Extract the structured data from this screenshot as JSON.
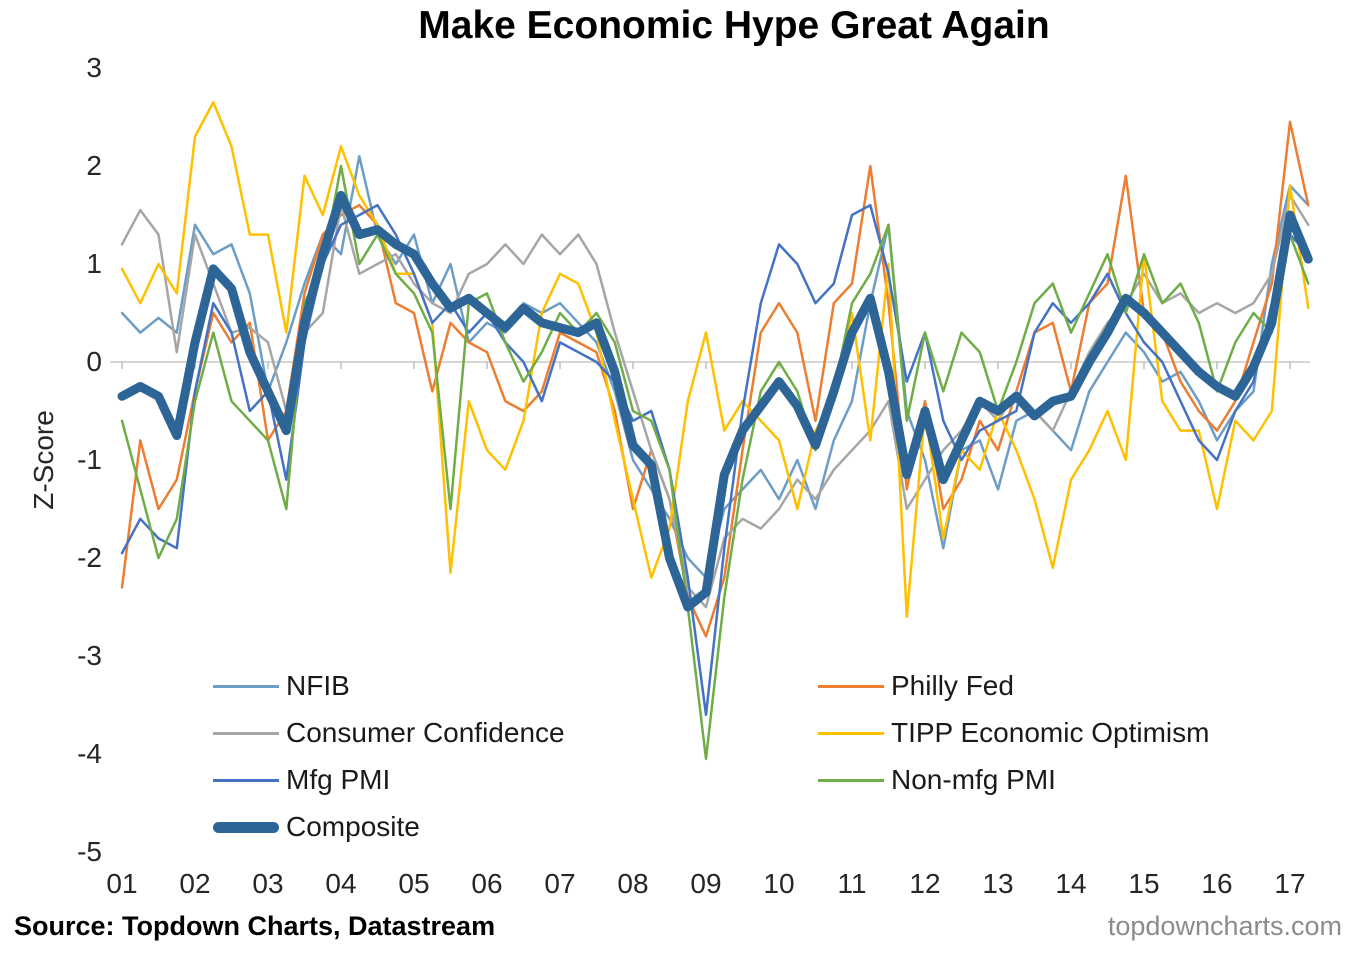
{
  "title": "Make Economic Hype Great Again",
  "y_axis": {
    "label": "Z-Score",
    "ticks": [
      3,
      2,
      1,
      0,
      -1,
      -2,
      -3,
      -4,
      -5
    ]
  },
  "x_axis": {
    "ticks": [
      "01",
      "02",
      "03",
      "04",
      "05",
      "06",
      "07",
      "08",
      "09",
      "10",
      "11",
      "12",
      "13",
      "14",
      "15",
      "16",
      "17"
    ]
  },
  "footer": {
    "source": "Source: Topdown Charts, Datastream",
    "watermark": "topdowncharts.com"
  },
  "colors": {
    "zero_line": "#D6D6D6",
    "axis_tick": "#BFBFBF",
    "title_text": "#000000",
    "watermark_text": "#8C8C8C"
  },
  "chart_data": {
    "type": "line",
    "title": "Make Economic Hype Great Again",
    "xlabel": "",
    "ylabel": "Z-Score",
    "ylim": [
      -5,
      3
    ],
    "xlim": [
      2001,
      2017.3
    ],
    "x_unit": "year",
    "x_start": 2001.0,
    "x_step": 0.25,
    "x_tick_labels": [
      "01",
      "02",
      "03",
      "04",
      "05",
      "06",
      "07",
      "08",
      "09",
      "10",
      "11",
      "12",
      "13",
      "14",
      "15",
      "16",
      "17"
    ],
    "grid": "zero-line-only",
    "legend_position": "inside-bottom-two-columns",
    "series": [
      {
        "id": "nfib",
        "name": "NFIB",
        "color": "#6C9DC6",
        "width": 2.5,
        "values": [
          0.5,
          0.3,
          0.45,
          0.3,
          1.4,
          1.1,
          1.2,
          0.7,
          -0.3,
          0.2,
          0.8,
          1.3,
          1.1,
          2.1,
          1.3,
          1.0,
          1.3,
          0.6,
          1.0,
          0.2,
          0.4,
          0.3,
          0.6,
          0.5,
          0.6,
          0.4,
          0.2,
          -0.3,
          -1.0,
          -1.3,
          -1.6,
          -2.0,
          -2.2,
          -1.5,
          -1.3,
          -1.1,
          -1.4,
          -1.0,
          -1.5,
          -0.8,
          -0.4,
          0.6,
          1.4,
          -0.5,
          -1.0,
          -1.9,
          -0.9,
          -0.8,
          -1.3,
          -0.6,
          -0.5,
          -0.7,
          -0.9,
          -0.3,
          0.0,
          0.3,
          0.1,
          -0.2,
          -0.1,
          -0.4,
          -0.8,
          -0.5,
          -0.3,
          1.0,
          1.8,
          1.6
        ]
      },
      {
        "id": "philly-fed",
        "name": "Philly Fed",
        "color": "#ED7D31",
        "width": 2.5,
        "values": [
          -2.3,
          -0.8,
          -1.5,
          -1.2,
          -0.3,
          0.5,
          0.2,
          0.4,
          -0.8,
          -0.5,
          0.7,
          1.3,
          1.5,
          1.6,
          1.4,
          0.6,
          0.5,
          -0.3,
          0.4,
          0.2,
          0.1,
          -0.4,
          -0.5,
          -0.3,
          0.3,
          0.2,
          0.1,
          -0.5,
          -1.5,
          -0.9,
          -1.4,
          -2.4,
          -2.8,
          -2.2,
          -0.9,
          0.3,
          0.6,
          0.3,
          -0.6,
          0.6,
          0.8,
          2.0,
          0.6,
          -1.3,
          -0.4,
          -1.5,
          -1.2,
          -0.6,
          -0.9,
          -0.3,
          0.3,
          0.4,
          -0.3,
          0.6,
          0.8,
          1.9,
          0.5,
          0.3,
          -0.2,
          -0.5,
          -0.7,
          -0.4,
          0.2,
          0.8,
          2.45,
          1.6
        ]
      },
      {
        "id": "consumer-confidence",
        "name": "Consumer Confidence",
        "color": "#A6A6A6",
        "width": 2.5,
        "values": [
          1.2,
          1.55,
          1.3,
          0.1,
          1.3,
          0.8,
          0.3,
          0.35,
          0.2,
          -0.5,
          0.3,
          0.5,
          1.6,
          0.9,
          1.0,
          1.1,
          0.8,
          0.6,
          0.5,
          0.9,
          1.0,
          1.2,
          1.0,
          1.3,
          1.1,
          1.3,
          1.0,
          0.3,
          -0.3,
          -0.9,
          -1.4,
          -2.3,
          -2.5,
          -1.8,
          -1.6,
          -1.7,
          -1.5,
          -1.2,
          -1.4,
          -1.1,
          -0.9,
          -0.7,
          -0.4,
          -1.5,
          -1.2,
          -0.9,
          -0.7,
          -0.4,
          -0.6,
          -0.3,
          -0.5,
          -0.7,
          -0.3,
          0.1,
          0.4,
          0.6,
          0.9,
          0.6,
          0.7,
          0.5,
          0.6,
          0.5,
          0.6,
          0.9,
          1.7,
          1.4
        ]
      },
      {
        "id": "tipp-economic-optimism",
        "name": "TIPP Economic Optimism",
        "color": "#FFC000",
        "width": 2.5,
        "values": [
          0.95,
          0.6,
          1.0,
          0.7,
          2.3,
          2.65,
          2.2,
          1.3,
          1.3,
          0.3,
          1.9,
          1.5,
          2.2,
          1.7,
          1.4,
          0.9,
          0.9,
          0.4,
          -2.15,
          -0.4,
          -0.9,
          -1.1,
          -0.6,
          0.5,
          0.9,
          0.8,
          0.3,
          -0.6,
          -1.4,
          -2.2,
          -1.7,
          -0.4,
          0.3,
          -0.7,
          -0.4,
          -0.6,
          -0.8,
          -1.5,
          -0.7,
          -0.4,
          0.5,
          -0.8,
          1.0,
          -2.6,
          -0.5,
          -1.8,
          -0.9,
          -1.1,
          -0.5,
          -0.9,
          -1.4,
          -2.1,
          -1.2,
          -0.9,
          -0.5,
          -1.0,
          1.1,
          -0.4,
          -0.7,
          -0.7,
          -1.5,
          -0.6,
          -0.8,
          -0.5,
          1.8,
          0.55
        ]
      },
      {
        "id": "mfg-pmi",
        "name": "Mfg PMI",
        "color": "#4472C4",
        "width": 2.5,
        "values": [
          -1.95,
          -1.6,
          -1.8,
          -1.9,
          -0.3,
          0.6,
          0.3,
          -0.5,
          -0.3,
          -1.2,
          0.2,
          1.0,
          1.4,
          1.5,
          1.6,
          1.3,
          0.9,
          0.4,
          0.6,
          0.3,
          0.5,
          0.2,
          0.0,
          -0.4,
          0.2,
          0.1,
          0.0,
          -0.2,
          -0.6,
          -0.5,
          -1.1,
          -2.2,
          -3.6,
          -1.9,
          -0.5,
          0.6,
          1.2,
          1.0,
          0.6,
          0.8,
          1.5,
          1.6,
          0.9,
          -0.2,
          0.3,
          -0.6,
          -1.0,
          -0.7,
          -0.6,
          -0.5,
          0.3,
          0.6,
          0.4,
          0.6,
          0.9,
          0.5,
          0.2,
          0.0,
          -0.4,
          -0.8,
          -1.0,
          -0.5,
          -0.2,
          0.6,
          1.3,
          1.1
        ]
      },
      {
        "id": "non-mfg-pmi",
        "name": "Non-mfg PMI",
        "color": "#70AD47",
        "width": 2.5,
        "values": [
          -0.6,
          -1.3,
          -2.0,
          -1.6,
          -0.4,
          0.3,
          -0.4,
          -0.6,
          -0.8,
          -1.5,
          0.6,
          1.0,
          2.0,
          1.0,
          1.3,
          0.9,
          0.7,
          0.3,
          -1.5,
          0.6,
          0.7,
          0.2,
          -0.2,
          0.1,
          0.5,
          0.3,
          0.5,
          0.2,
          -0.5,
          -0.6,
          -1.1,
          -2.5,
          -4.05,
          -2.4,
          -1.2,
          -0.3,
          0.0,
          -0.3,
          -0.9,
          -0.3,
          0.6,
          0.9,
          1.4,
          -0.6,
          0.3,
          -0.3,
          0.3,
          0.1,
          -0.5,
          0.0,
          0.6,
          0.8,
          0.3,
          0.7,
          1.1,
          0.5,
          1.1,
          0.6,
          0.8,
          0.4,
          -0.3,
          0.2,
          0.5,
          0.3,
          1.3,
          0.8
        ]
      },
      {
        "id": "composite",
        "name": "Composite",
        "color": "#2D6596",
        "width": 9,
        "values": [
          -0.35,
          -0.25,
          -0.35,
          -0.75,
          0.2,
          0.95,
          0.75,
          0.1,
          -0.3,
          -0.7,
          0.4,
          1.1,
          1.7,
          1.3,
          1.35,
          1.2,
          1.1,
          0.8,
          0.55,
          0.65,
          0.5,
          0.35,
          0.55,
          0.4,
          0.35,
          0.3,
          0.4,
          -0.1,
          -0.85,
          -1.05,
          -2.0,
          -2.5,
          -2.35,
          -1.15,
          -0.7,
          -0.45,
          -0.2,
          -0.45,
          -0.85,
          -0.3,
          0.3,
          0.65,
          -0.1,
          -1.15,
          -0.5,
          -1.2,
          -0.8,
          -0.4,
          -0.5,
          -0.35,
          -0.55,
          -0.4,
          -0.35,
          0.0,
          0.3,
          0.65,
          0.5,
          0.3,
          0.1,
          -0.1,
          -0.25,
          -0.35,
          -0.05,
          0.4,
          1.5,
          1.05
        ]
      }
    ]
  }
}
